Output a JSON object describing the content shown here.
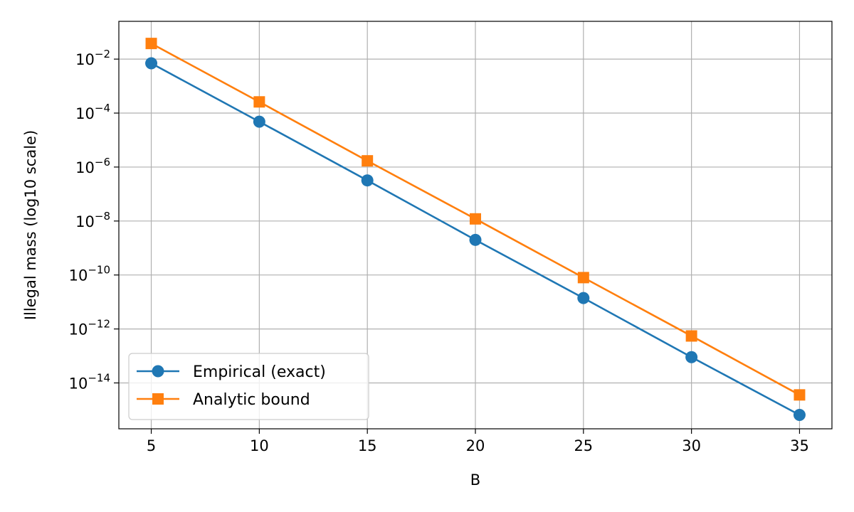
{
  "chart_data": {
    "type": "line",
    "xlabel": "B",
    "ylabel": "Illegal mass (log10 scale)",
    "yscale": "log10",
    "x": [
      5,
      10,
      15,
      20,
      25,
      30,
      35
    ],
    "xticks": [
      "5",
      "10",
      "15",
      "20",
      "25",
      "30",
      "35"
    ],
    "xlim": [
      3.5,
      36.5
    ],
    "ylim_log10": [
      -15.7,
      -0.6
    ],
    "yticks": [
      {
        "base": "10",
        "exp": "−2",
        "log10": -2
      },
      {
        "base": "10",
        "exp": "−4",
        "log10": -4
      },
      {
        "base": "10",
        "exp": "−6",
        "log10": -6
      },
      {
        "base": "10",
        "exp": "−8",
        "log10": -8
      },
      {
        "base": "10",
        "exp": "−10",
        "log10": -10
      },
      {
        "base": "10",
        "exp": "−12",
        "log10": -12
      },
      {
        "base": "10",
        "exp": "−14",
        "log10": -14
      }
    ],
    "grid": true,
    "legend_position": "lower-left",
    "series": [
      {
        "name": "Empirical (exact)",
        "marker": "circle",
        "color": "#1f77b4",
        "values": [
          0.007,
          4.8e-05,
          3.2e-07,
          2e-09,
          1.4e-11,
          9e-14,
          6.5e-16
        ]
      },
      {
        "name": "Analytic bound",
        "marker": "square",
        "color": "#ff7f0e",
        "values": [
          0.038,
          0.00026,
          1.7e-06,
          1.2e-08,
          8e-11,
          5.5e-13,
          3.6e-15
        ]
      }
    ]
  }
}
